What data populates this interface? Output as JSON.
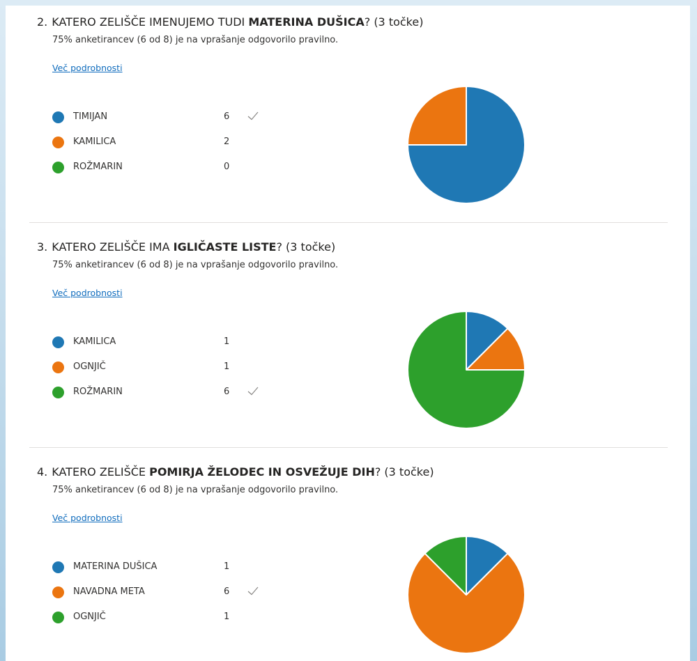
{
  "colors": {
    "series": [
      "#1f78b4",
      "#eb7510",
      "#2da02c"
    ],
    "link": "#0f6cbd"
  },
  "questions": [
    {
      "number": "2.",
      "title_pre": "KATERO ZELIŠČE IMENUJEMO TUDI ",
      "title_bold": "MATERINA DUŠICA",
      "title_post": "? (3 točke)",
      "summary": "75% anketirancev (6 od 8) je na vprašanje odgovorilo pravilno.",
      "details_label": "Več podrobnosti",
      "options": [
        {
          "label": "TIMIJAN",
          "count": "6",
          "correct": true
        },
        {
          "label": "KAMILICA",
          "count": "2",
          "correct": false
        },
        {
          "label": "ROŽMARIN",
          "count": "0",
          "correct": false
        }
      ]
    },
    {
      "number": "3.",
      "title_pre": "KATERO ZELIŠČE IMA ",
      "title_bold": "IGLIČASTE LISTE",
      "title_post": "? (3 točke)",
      "summary": "75% anketirancev (6 od 8) je na vprašanje odgovorilo pravilno.",
      "details_label": "Več podrobnosti",
      "options": [
        {
          "label": "KAMILICA",
          "count": "1",
          "correct": false
        },
        {
          "label": "OGNJIČ",
          "count": "1",
          "correct": false
        },
        {
          "label": "ROŽMARIN",
          "count": "6",
          "correct": true
        }
      ]
    },
    {
      "number": "4.",
      "title_pre": "KATERO ZELIŠČE ",
      "title_bold": "POMIRJA ŽELODEC IN OSVEŽUJE DIH",
      "title_post": "? (3 točke)",
      "summary": "75% anketirancev (6 od 8) je na vprašanje odgovorilo pravilno.",
      "details_label": "Več podrobnosti",
      "options": [
        {
          "label": "MATERINA DUŠICA",
          "count": "1",
          "correct": false
        },
        {
          "label": "NAVADNA META",
          "count": "6",
          "correct": true
        },
        {
          "label": "OGNJIČ",
          "count": "1",
          "correct": false
        }
      ]
    }
  ],
  "chart_data": [
    {
      "type": "pie",
      "categories": [
        "TIMIJAN",
        "KAMILICA",
        "ROŽMARIN"
      ],
      "values": [
        6,
        2,
        0
      ],
      "colors": [
        "#1f78b4",
        "#eb7510",
        "#2da02c"
      ]
    },
    {
      "type": "pie",
      "categories": [
        "KAMILICA",
        "OGNJIČ",
        "ROŽMARIN"
      ],
      "values": [
        1,
        1,
        6
      ],
      "colors": [
        "#1f78b4",
        "#eb7510",
        "#2da02c"
      ]
    },
    {
      "type": "pie",
      "categories": [
        "MATERINA DUŠICA",
        "NAVADNA META",
        "OGNJIČ"
      ],
      "values": [
        1,
        6,
        1
      ],
      "colors": [
        "#1f78b4",
        "#eb7510",
        "#2da02c"
      ]
    }
  ]
}
